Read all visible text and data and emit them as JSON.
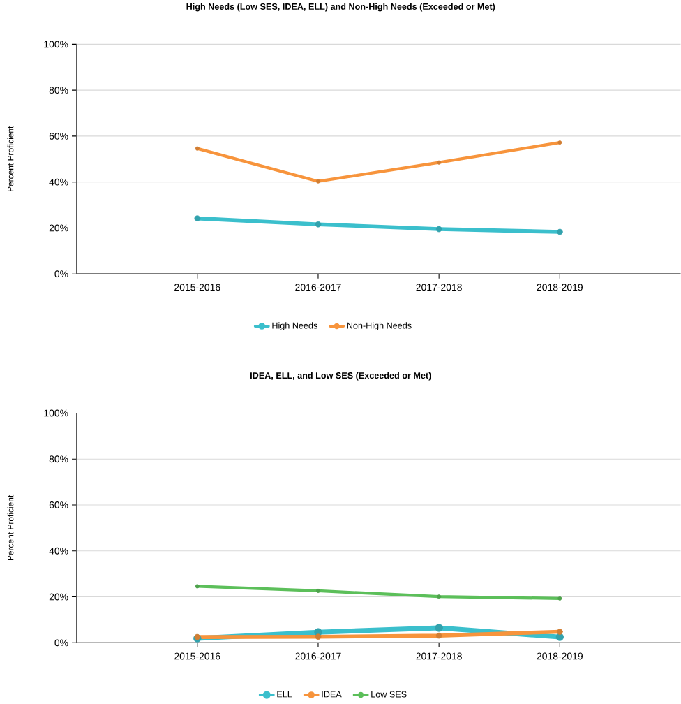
{
  "chart_data": [
    {
      "type": "line",
      "title": "High Needs (Low SES, IDEA, ELL) and Non-High Needs (Exceeded or Met)",
      "ylabel": "Percent Proficient",
      "categories": [
        "2015-2016",
        "2016-2017",
        "2017-2018",
        "2018-2019"
      ],
      "series": [
        {
          "name": "High Needs",
          "color": "#3bbfcc",
          "values": [
            24.2,
            21.6,
            19.5,
            18.3
          ]
        },
        {
          "name": "Non-High Needs",
          "color": "#f7943c",
          "values": [
            54.6,
            40.3,
            48.5,
            57.2
          ]
        }
      ],
      "ylim": [
        0,
        100
      ],
      "yticks": [
        {
          "value": 0,
          "label": "0%"
        },
        {
          "value": 20,
          "label": "20%"
        },
        {
          "value": 40,
          "label": "40%"
        },
        {
          "value": 60,
          "label": "60%"
        },
        {
          "value": 80,
          "label": "80%"
        },
        {
          "value": 100,
          "label": "100%"
        }
      ],
      "grid": "y",
      "legend": "bottom",
      "marker": "circle",
      "line_style": "solid"
    },
    {
      "type": "line",
      "title": "IDEA, ELL, and Low SES (Exceeded or Met)",
      "ylabel": "Percent Proficient",
      "categories": [
        "2015-2016",
        "2016-2017",
        "2017-2018",
        "2018-2019"
      ],
      "series": [
        {
          "name": "ELL",
          "color": "#3bbfcc",
          "values": [
            1.9,
            4.6,
            6.5,
            2.5
          ]
        },
        {
          "name": "IDEA",
          "color": "#f7943c",
          "values": [
            2.5,
            2.6,
            3.1,
            4.8
          ]
        },
        {
          "name": "Low SES",
          "color": "#5cbf5a",
          "values": [
            24.6,
            22.6,
            20.1,
            19.3
          ]
        }
      ],
      "ylim": [
        0,
        100
      ],
      "yticks": [
        {
          "value": 0,
          "label": "0%"
        },
        {
          "value": 20,
          "label": "20%"
        },
        {
          "value": 40,
          "label": "40%"
        },
        {
          "value": 60,
          "label": "60%"
        },
        {
          "value": 80,
          "label": "80%"
        },
        {
          "value": 100,
          "label": "100%"
        }
      ],
      "grid": "y",
      "legend": "bottom",
      "marker": "circle",
      "line_style": "solid"
    }
  ]
}
